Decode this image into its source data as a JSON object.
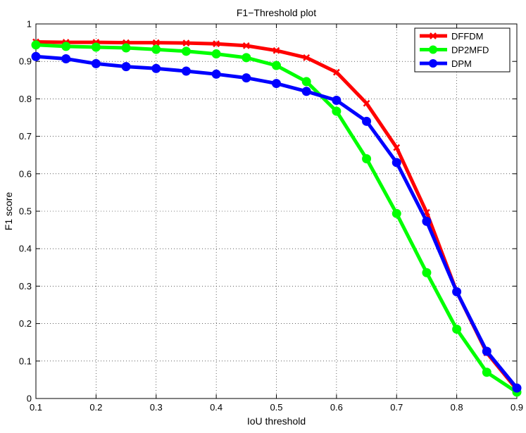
{
  "chart_data": {
    "type": "line",
    "title": "F1−Threshold plot",
    "xlabel": "IoU threshold",
    "ylabel": "F1 score",
    "xlim": [
      0.1,
      0.9
    ],
    "ylim": [
      0,
      1
    ],
    "x_ticks": [
      "0.1",
      "0.2",
      "0.3",
      "0.4",
      "0.5",
      "0.6",
      "0.7",
      "0.8",
      "0.9"
    ],
    "y_ticks": [
      "0",
      "0.1",
      "0.2",
      "0.3",
      "0.4",
      "0.5",
      "0.6",
      "0.7",
      "0.8",
      "0.9",
      "1"
    ],
    "grid": true,
    "grid_style": "dotted",
    "legend_position": "top-right",
    "x": [
      0.1,
      0.15,
      0.2,
      0.25,
      0.3,
      0.35,
      0.4,
      0.45,
      0.5,
      0.55,
      0.6,
      0.65,
      0.7,
      0.75,
      0.8,
      0.85,
      0.9
    ],
    "series": [
      {
        "name": "DFFDM",
        "color": "#ff0000",
        "marker": "x",
        "values": [
          0.952,
          0.951,
          0.951,
          0.95,
          0.95,
          0.949,
          0.947,
          0.942,
          0.929,
          0.91,
          0.871,
          0.788,
          0.67,
          0.497,
          0.285,
          0.122,
          0.024
        ]
      },
      {
        "name": "DP2MFD",
        "color": "#00ff00",
        "marker": "o",
        "values": [
          0.944,
          0.94,
          0.938,
          0.936,
          0.932,
          0.927,
          0.92,
          0.91,
          0.889,
          0.846,
          0.767,
          0.64,
          0.494,
          0.336,
          0.185,
          0.07,
          0.017
        ]
      },
      {
        "name": "DPM",
        "color": "#0000ff",
        "marker": "o",
        "values": [
          0.913,
          0.907,
          0.894,
          0.886,
          0.881,
          0.874,
          0.866,
          0.856,
          0.841,
          0.82,
          0.796,
          0.74,
          0.63,
          0.473,
          0.285,
          0.126,
          0.028
        ]
      }
    ]
  }
}
